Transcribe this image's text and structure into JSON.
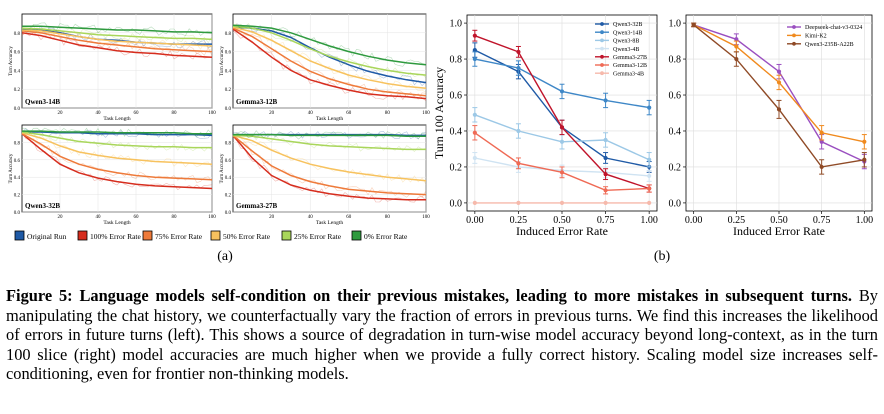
{
  "subfig_a_label": "(a)",
  "subfig_b_label": "(b)",
  "caption": {
    "label": "Figure 5:",
    "lead": "Language models self-condition on their previous mistakes, leading to more mistakes in subsequent turns.",
    "body": "By manipulating the chat history, we counterfactually vary the fraction of errors in previous turns. We find this increases the likelihood of errors in future turns (left). This shows a source of degradation in turn-wise model accuracy beyond long-context, as in the turn 100 slice (right) model accuracies are much higher when we provide a fully correct history. Scaling model size increases self-conditioning, even for frontier non-thinking models."
  },
  "legend_a": [
    {
      "name": "Original Run",
      "color": "#1f5aa6"
    },
    {
      "name": "100% Error Rate",
      "color": "#d62d1e"
    },
    {
      "name": "75% Error Rate",
      "color": "#ee7a3a"
    },
    {
      "name": "50% Error Rate",
      "color": "#f7c25e"
    },
    {
      "name": "25% Error Rate",
      "color": "#a9d65b"
    },
    {
      "name": "0% Error Rate",
      "color": "#2e9a3e"
    }
  ],
  "chart_data": [
    {
      "type": "line",
      "panel": "Qwen3-14B",
      "xlabel": "Task Length",
      "ylabel": "Turn Accuracy",
      "xlim": [
        0,
        100
      ],
      "ylim": [
        0.0,
        1.0
      ],
      "xticks": [
        20,
        40,
        60,
        80,
        100
      ],
      "yticks": [
        0.0,
        0.2,
        0.4,
        0.6,
        0.8
      ],
      "x": [
        0,
        10,
        20,
        30,
        40,
        50,
        60,
        70,
        80,
        90,
        100
      ],
      "series": [
        {
          "name": "Original Run",
          "color": "#1f5aa6",
          "values": [
            0.84,
            0.83,
            0.8,
            0.76,
            0.73,
            0.72,
            0.7,
            0.69,
            0.68,
            0.68,
            0.68
          ]
        },
        {
          "name": "100% Error Rate",
          "color": "#d62d1e",
          "values": [
            0.8,
            0.77,
            0.72,
            0.67,
            0.64,
            0.61,
            0.59,
            0.58,
            0.56,
            0.55,
            0.54
          ]
        },
        {
          "name": "75% Error Rate",
          "color": "#ee7a3a",
          "values": [
            0.82,
            0.8,
            0.76,
            0.72,
            0.69,
            0.67,
            0.65,
            0.63,
            0.62,
            0.61,
            0.6
          ]
        },
        {
          "name": "50% Error Rate",
          "color": "#f7c25e",
          "values": [
            0.83,
            0.82,
            0.79,
            0.76,
            0.73,
            0.71,
            0.7,
            0.69,
            0.68,
            0.67,
            0.66
          ]
        },
        {
          "name": "25% Error Rate",
          "color": "#a9d65b",
          "values": [
            0.85,
            0.84,
            0.82,
            0.8,
            0.78,
            0.77,
            0.76,
            0.75,
            0.74,
            0.74,
            0.73
          ]
        },
        {
          "name": "0% Error Rate",
          "color": "#2e9a3e",
          "values": [
            0.87,
            0.87,
            0.86,
            0.85,
            0.84,
            0.83,
            0.83,
            0.82,
            0.81,
            0.81,
            0.8
          ]
        }
      ]
    },
    {
      "type": "line",
      "panel": "Gemma3-12B",
      "xlabel": "Task Length",
      "ylabel": "Turn Accuracy",
      "xlim": [
        0,
        100
      ],
      "ylim": [
        0.0,
        1.0
      ],
      "xticks": [
        20,
        40,
        60,
        80,
        100
      ],
      "yticks": [
        0.0,
        0.2,
        0.4,
        0.6,
        0.8
      ],
      "x": [
        0,
        10,
        20,
        30,
        40,
        50,
        60,
        70,
        80,
        90,
        100
      ],
      "series": [
        {
          "name": "Original Run",
          "color": "#1f5aa6",
          "values": [
            0.86,
            0.85,
            0.82,
            0.75,
            0.64,
            0.54,
            0.46,
            0.39,
            0.34,
            0.3,
            0.27
          ]
        },
        {
          "name": "100% Error Rate",
          "color": "#d62d1e",
          "values": [
            0.84,
            0.7,
            0.54,
            0.4,
            0.3,
            0.24,
            0.19,
            0.15,
            0.13,
            0.12,
            0.1
          ]
        },
        {
          "name": "75% Error Rate",
          "color": "#ee7a3a",
          "values": [
            0.85,
            0.76,
            0.63,
            0.5,
            0.39,
            0.31,
            0.25,
            0.2,
            0.17,
            0.15,
            0.13
          ]
        },
        {
          "name": "50% Error Rate",
          "color": "#f7c25e",
          "values": [
            0.86,
            0.81,
            0.72,
            0.61,
            0.5,
            0.42,
            0.35,
            0.3,
            0.26,
            0.23,
            0.21
          ]
        },
        {
          "name": "25% Error Rate",
          "color": "#a9d65b",
          "values": [
            0.87,
            0.85,
            0.8,
            0.72,
            0.63,
            0.55,
            0.49,
            0.44,
            0.4,
            0.37,
            0.35
          ]
        },
        {
          "name": "0% Error Rate",
          "color": "#2e9a3e",
          "values": [
            0.88,
            0.87,
            0.85,
            0.8,
            0.73,
            0.66,
            0.6,
            0.55,
            0.51,
            0.48,
            0.46
          ]
        }
      ]
    },
    {
      "type": "line",
      "panel": "Qwen3-32B",
      "xlabel": "Task Length",
      "ylabel": "Turn Accuracy",
      "xlim": [
        0,
        100
      ],
      "ylim": [
        0.0,
        1.0
      ],
      "xticks": [
        20,
        40,
        60,
        80,
        100
      ],
      "yticks": [
        0.0,
        0.2,
        0.4,
        0.6,
        0.8
      ],
      "x": [
        0,
        10,
        20,
        30,
        40,
        50,
        60,
        70,
        80,
        90,
        100
      ],
      "series": [
        {
          "name": "Original Run",
          "color": "#1f5aa6",
          "values": [
            0.92,
            0.92,
            0.91,
            0.91,
            0.9,
            0.9,
            0.9,
            0.89,
            0.89,
            0.89,
            0.88
          ]
        },
        {
          "name": "100% Error Rate",
          "color": "#d62d1e",
          "values": [
            0.9,
            0.72,
            0.55,
            0.45,
            0.39,
            0.35,
            0.32,
            0.3,
            0.29,
            0.28,
            0.27
          ]
        },
        {
          "name": "75% Error Rate",
          "color": "#ee7a3a",
          "values": [
            0.9,
            0.78,
            0.64,
            0.55,
            0.49,
            0.45,
            0.42,
            0.4,
            0.39,
            0.38,
            0.37
          ]
        },
        {
          "name": "50% Error Rate",
          "color": "#f7c25e",
          "values": [
            0.91,
            0.85,
            0.76,
            0.69,
            0.65,
            0.62,
            0.6,
            0.58,
            0.57,
            0.56,
            0.55
          ]
        },
        {
          "name": "25% Error Rate",
          "color": "#a9d65b",
          "values": [
            0.92,
            0.89,
            0.85,
            0.81,
            0.79,
            0.77,
            0.76,
            0.75,
            0.75,
            0.74,
            0.74
          ]
        },
        {
          "name": "0% Error Rate",
          "color": "#2e9a3e",
          "values": [
            0.93,
            0.93,
            0.92,
            0.92,
            0.92,
            0.91,
            0.91,
            0.91,
            0.91,
            0.9,
            0.9
          ]
        }
      ]
    },
    {
      "type": "line",
      "panel": "Gemma3-27B",
      "xlabel": "Task Length",
      "ylabel": "Turn Accuracy",
      "xlim": [
        0,
        100
      ],
      "ylim": [
        0.0,
        1.0
      ],
      "xticks": [
        20,
        40,
        60,
        80,
        100
      ],
      "yticks": [
        0.0,
        0.2,
        0.4,
        0.6,
        0.8
      ],
      "x": [
        0,
        10,
        20,
        30,
        40,
        50,
        60,
        70,
        80,
        90,
        100
      ],
      "series": [
        {
          "name": "Original Run",
          "color": "#1f5aa6",
          "values": [
            0.89,
            0.89,
            0.89,
            0.89,
            0.89,
            0.89,
            0.89,
            0.89,
            0.89,
            0.88,
            0.88
          ]
        },
        {
          "name": "100% Error Rate",
          "color": "#d62d1e",
          "values": [
            0.88,
            0.62,
            0.42,
            0.31,
            0.25,
            0.21,
            0.18,
            0.16,
            0.15,
            0.14,
            0.14
          ]
        },
        {
          "name": "75% Error Rate",
          "color": "#ee7a3a",
          "values": [
            0.88,
            0.7,
            0.53,
            0.42,
            0.35,
            0.3,
            0.26,
            0.24,
            0.22,
            0.21,
            0.2
          ]
        },
        {
          "name": "50% Error Rate",
          "color": "#f7c25e",
          "values": [
            0.88,
            0.82,
            0.71,
            0.62,
            0.55,
            0.5,
            0.46,
            0.43,
            0.4,
            0.38,
            0.36
          ]
        },
        {
          "name": "25% Error Rate",
          "color": "#a9d65b",
          "values": [
            0.88,
            0.87,
            0.84,
            0.81,
            0.78,
            0.76,
            0.75,
            0.74,
            0.73,
            0.72,
            0.72
          ]
        },
        {
          "name": "0% Error Rate",
          "color": "#2e9a3e",
          "values": [
            0.89,
            0.89,
            0.89,
            0.88,
            0.88,
            0.88,
            0.88,
            0.88,
            0.88,
            0.87,
            0.87
          ]
        }
      ]
    },
    {
      "type": "line",
      "panel": "b-left",
      "xlabel": "Induced Error Rate",
      "ylabel": "Turn 100 Accuracy",
      "xlim": [
        0,
        1
      ],
      "ylim": [
        0.0,
        1.0
      ],
      "xtick_labels": [
        "0.00",
        "0.25",
        "0.50",
        "0.75",
        "1.00"
      ],
      "ytick_labels": [
        "0.0",
        "0.2",
        "0.4",
        "0.6",
        "0.8",
        "1.0"
      ],
      "x": [
        0,
        0.25,
        0.5,
        0.75,
        1.0
      ],
      "series": [
        {
          "name": "Qwen3-32B",
          "color": "#1f5aa6",
          "values": [
            0.85,
            0.73,
            0.42,
            0.25,
            0.2
          ],
          "errors": [
            0.04,
            0.04,
            0.04,
            0.03,
            0.03
          ]
        },
        {
          "name": "Qwen3-14B",
          "color": "#3e87c7",
          "values": [
            0.8,
            0.75,
            0.62,
            0.57,
            0.53
          ],
          "errors": [
            0.04,
            0.04,
            0.04,
            0.04,
            0.04
          ]
        },
        {
          "name": "Qwen3-8B",
          "color": "#9cc8e6",
          "values": [
            0.49,
            0.4,
            0.34,
            0.35,
            0.24
          ],
          "errors": [
            0.04,
            0.04,
            0.04,
            0.04,
            0.04
          ]
        },
        {
          "name": "Qwen3-4B",
          "color": "#cfe3f2",
          "values": [
            0.25,
            0.2,
            0.18,
            0.17,
            0.15
          ],
          "errors": [
            0.03,
            0.03,
            0.03,
            0.03,
            0.03
          ]
        },
        {
          "name": "Gemma3-27B",
          "color": "#c0142b",
          "values": [
            0.93,
            0.84,
            0.42,
            0.16,
            0.08
          ],
          "errors": [
            0.03,
            0.03,
            0.04,
            0.03,
            0.02
          ]
        },
        {
          "name": "Gemma3-12B",
          "color": "#ef6a55",
          "values": [
            0.39,
            0.22,
            0.17,
            0.07,
            0.08
          ],
          "errors": [
            0.04,
            0.03,
            0.03,
            0.02,
            0.02
          ]
        },
        {
          "name": "Gemma3-4B",
          "color": "#f6b9ab",
          "values": [
            0.0,
            0.0,
            0.0,
            0.0,
            0.0
          ],
          "errors": [
            0,
            0,
            0,
            0,
            0
          ]
        }
      ]
    },
    {
      "type": "line",
      "panel": "b-right",
      "xlabel": "Induced Error Rate",
      "ylabel": "",
      "xlim": [
        0,
        1
      ],
      "ylim": [
        0.0,
        1.0
      ],
      "xtick_labels": [
        "0.00",
        "0.25",
        "0.50",
        "0.75",
        "1.00"
      ],
      "ytick_labels": [
        "0.0",
        "0.2",
        "0.4",
        "0.6",
        "0.8",
        "1.0"
      ],
      "x": [
        0,
        0.25,
        0.5,
        0.75,
        1.0
      ],
      "series": [
        {
          "name": "Deepseek-chat-v3-0324",
          "color": "#9a4fc0",
          "values": [
            0.99,
            0.91,
            0.73,
            0.34,
            0.23
          ],
          "errors": [
            0.01,
            0.03,
            0.04,
            0.04,
            0.04
          ]
        },
        {
          "name": "Kimi-K2",
          "color": "#f08a1e",
          "values": [
            0.99,
            0.87,
            0.67,
            0.39,
            0.34
          ],
          "errors": [
            0.01,
            0.03,
            0.04,
            0.04,
            0.04
          ]
        },
        {
          "name": "Qwen3-235B-A22B",
          "color": "#8f4a26",
          "values": [
            0.99,
            0.8,
            0.52,
            0.2,
            0.24
          ],
          "errors": [
            0.01,
            0.04,
            0.05,
            0.04,
            0.04
          ]
        }
      ]
    }
  ]
}
